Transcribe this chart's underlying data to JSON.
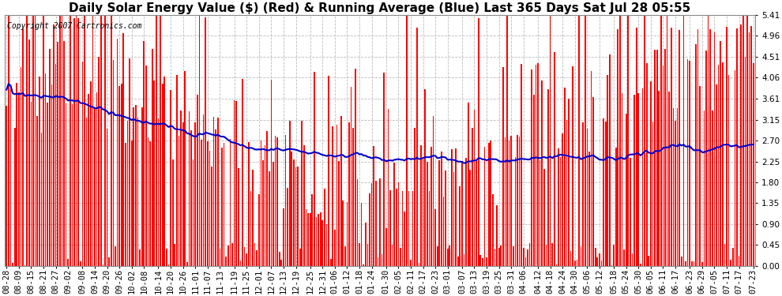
{
  "title": "Daily Solar Energy Value ($) (Red) & Running Average (Blue) Last 365 Days Sat Jul 28 05:55",
  "copyright": "Copyright 2007 Cartronics.com",
  "bar_color": "#ff0000",
  "line_color": "#0000cc",
  "background_color": "#ffffff",
  "plot_bg_color": "#ffffff",
  "grid_color": "#bbbbbb",
  "ymin": 0.0,
  "ymax": 5.41,
  "yticks": [
    0.0,
    0.45,
    0.9,
    1.35,
    1.8,
    2.25,
    2.7,
    3.15,
    3.61,
    4.06,
    4.51,
    4.96,
    5.41
  ],
  "x_labels": [
    "08-28",
    "08-09",
    "08-15",
    "08-21",
    "08-27",
    "09-02",
    "09-08",
    "09-14",
    "09-20",
    "09-26",
    "10-02",
    "10-08",
    "10-14",
    "10-20",
    "10-26",
    "11-01",
    "11-07",
    "11-13",
    "11-19",
    "11-25",
    "12-01",
    "12-07",
    "12-13",
    "12-19",
    "12-25",
    "12-31",
    "01-06",
    "01-12",
    "01-18",
    "01-24",
    "01-30",
    "02-05",
    "02-11",
    "02-17",
    "02-23",
    "03-01",
    "03-07",
    "03-13",
    "03-19",
    "03-25",
    "03-31",
    "04-06",
    "04-12",
    "04-18",
    "04-24",
    "04-30",
    "05-06",
    "05-12",
    "05-18",
    "05-24",
    "05-30",
    "06-05",
    "06-11",
    "06-17",
    "06-23",
    "06-29",
    "07-05",
    "07-11",
    "07-17",
    "07-23"
  ],
  "title_fontsize": 11,
  "tick_fontsize": 7.5,
  "copyright_fontsize": 7,
  "avg_curve": [
    3.7,
    3.62,
    3.55,
    3.48,
    3.42,
    3.36,
    3.3,
    3.24,
    3.18,
    3.12,
    3.06,
    3.0,
    2.95,
    2.91,
    2.87,
    2.83,
    2.79,
    2.75,
    2.72,
    2.69,
    2.66,
    2.63,
    2.61,
    2.58,
    2.56,
    2.54,
    2.52,
    2.5,
    2.49,
    2.47,
    2.46,
    2.45,
    2.44,
    2.43,
    2.42,
    2.41,
    2.4,
    2.4,
    2.39,
    2.39,
    2.38,
    2.38,
    2.38,
    2.37,
    2.37,
    2.37,
    2.37,
    2.37,
    2.37,
    2.38,
    2.38,
    2.39,
    2.4,
    2.41,
    2.42,
    2.43,
    2.44,
    2.45,
    2.47,
    2.49
  ]
}
